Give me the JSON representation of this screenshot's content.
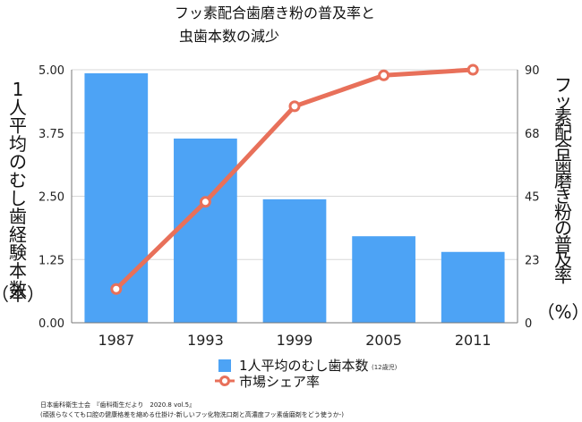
{
  "chart_data": {
    "type": "bar+line",
    "title_lines": [
      "フッ素配合歯磨き粉の普及率と",
      "虫歯本数の減少"
    ],
    "categories": [
      "1987",
      "1993",
      "1999",
      "2005",
      "2011"
    ],
    "y_left": {
      "label_chars": [
        "1",
        "人",
        "平",
        "均",
        "の",
        "む",
        "し",
        "歯",
        "経",
        "験",
        "本",
        "数"
      ],
      "unit": "（本）",
      "range": [
        0,
        5
      ],
      "ticks": [
        "0.00",
        "1.25",
        "2.50",
        "3.75",
        "5.00"
      ]
    },
    "y_right": {
      "label_chars": [
        "フ",
        "ッ",
        "素",
        "配",
        "合",
        "歯",
        "磨",
        "き",
        "粉",
        "の",
        "普",
        "及",
        "率"
      ],
      "unit": "（%）",
      "range": [
        0,
        90
      ],
      "ticks": [
        "0",
        "23",
        "45",
        "68",
        "90"
      ]
    },
    "series": [
      {
        "name": "1人平均のむし歯本数",
        "note": "(12歳児)",
        "kind": "bar",
        "axis": "left",
        "color": "#4da3f5",
        "values": [
          4.93,
          3.64,
          2.44,
          1.71,
          1.4
        ]
      },
      {
        "name": "市場シェア率",
        "kind": "line",
        "axis": "right",
        "color": "#e8705a",
        "values": [
          12,
          43,
          77,
          88,
          90
        ]
      }
    ],
    "grid": true,
    "legend_position": "bottom"
  },
  "source": {
    "line1": "日本歯科衛生士会　『歯科衛生だより　2020.8 vol.5』",
    "line2": "(頑張らなくても口腔の健康格差を縮める仕掛け-新しいフッ化物洗口剤と高濃度フッ素歯磨剤をどう使うか-)"
  }
}
